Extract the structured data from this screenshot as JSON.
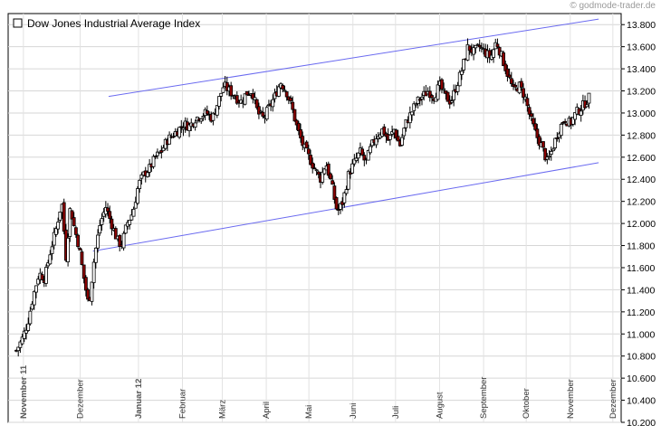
{
  "copyright": "© godmode-trader.de",
  "chart_data": {
    "type": "candlestick",
    "title": "Dow Jones Industrial Average Index",
    "legend_position": "top-left",
    "grid": true,
    "ylim": [
      10200,
      13900
    ],
    "yticks": [
      "13.800",
      "13.600",
      "13.400",
      "13.200",
      "13.000",
      "12.800",
      "12.600",
      "12.400",
      "12.200",
      "12.000",
      "11.800",
      "11.600",
      "11.400",
      "11.200",
      "11.000",
      "10.800",
      "10.600",
      "10.400",
      "10.200"
    ],
    "yticks_values": [
      13800,
      13600,
      13400,
      13200,
      13000,
      12800,
      12600,
      12400,
      12200,
      12000,
      11800,
      11600,
      11400,
      11200,
      11000,
      10800,
      10600,
      10400,
      10200
    ],
    "x_start_day": 0,
    "x_end_day": 408,
    "month_labels": [
      {
        "label": "November 11",
        "day": 5,
        "bold": true
      },
      {
        "label": "Dezember",
        "day": 45,
        "bold": false
      },
      {
        "label": "Januar 12",
        "day": 86,
        "bold": true
      },
      {
        "label": "Februar",
        "day": 117,
        "bold": false
      },
      {
        "label": "März",
        "day": 145,
        "bold": false
      },
      {
        "label": "April",
        "day": 176,
        "bold": false
      },
      {
        "label": "Mai",
        "day": 206,
        "bold": false
      },
      {
        "label": "Juni",
        "day": 237,
        "bold": false
      },
      {
        "label": "Juli",
        "day": 267,
        "bold": false
      },
      {
        "label": "August",
        "day": 298,
        "bold": false
      },
      {
        "label": "September",
        "day": 329,
        "bold": false
      },
      {
        "label": "Oktober",
        "day": 359,
        "bold": false
      },
      {
        "label": "November",
        "day": 390,
        "bold": false
      },
      {
        "label": "Dezember",
        "day": 420,
        "bold": false
      }
    ],
    "close_path": [
      [
        0,
        10850
      ],
      [
        4,
        10950
      ],
      [
        8,
        11100
      ],
      [
        12,
        11350
      ],
      [
        16,
        11550
      ],
      [
        20,
        11500
      ],
      [
        24,
        11750
      ],
      [
        28,
        11950
      ],
      [
        32,
        12200
      ],
      [
        35,
        11700
      ],
      [
        38,
        12150
      ],
      [
        41,
        11950
      ],
      [
        44,
        11800
      ],
      [
        47,
        11550
      ],
      [
        51,
        11250
      ],
      [
        55,
        11700
      ],
      [
        59,
        12000
      ],
      [
        63,
        12150
      ],
      [
        67,
        12000
      ],
      [
        71,
        11850
      ],
      [
        74,
        11800
      ],
      [
        78,
        12000
      ],
      [
        82,
        12100
      ],
      [
        86,
        12350
      ],
      [
        90,
        12450
      ],
      [
        94,
        12500
      ],
      [
        98,
        12600
      ],
      [
        102,
        12650
      ],
      [
        106,
        12750
      ],
      [
        110,
        12800
      ],
      [
        114,
        12850
      ],
      [
        118,
        12900
      ],
      [
        122,
        12880
      ],
      [
        126,
        12950
      ],
      [
        130,
        12980
      ],
      [
        134,
        13000
      ],
      [
        138,
        12950
      ],
      [
        142,
        13100
      ],
      [
        146,
        13250
      ],
      [
        150,
        13200
      ],
      [
        154,
        13150
      ],
      [
        158,
        13100
      ],
      [
        162,
        13180
      ],
      [
        166,
        13200
      ],
      [
        170,
        13000
      ],
      [
        174,
        12950
      ],
      [
        178,
        13050
      ],
      [
        182,
        13150
      ],
      [
        186,
        13280
      ],
      [
        190,
        13200
      ],
      [
        194,
        13050
      ],
      [
        198,
        12850
      ],
      [
        202,
        12700
      ],
      [
        206,
        12600
      ],
      [
        210,
        12500
      ],
      [
        214,
        12400
      ],
      [
        218,
        12550
      ],
      [
        222,
        12350
      ],
      [
        226,
        12100
      ],
      [
        230,
        12200
      ],
      [
        234,
        12450
      ],
      [
        238,
        12550
      ],
      [
        242,
        12650
      ],
      [
        246,
        12550
      ],
      [
        250,
        12700
      ],
      [
        254,
        12800
      ],
      [
        258,
        12850
      ],
      [
        262,
        12750
      ],
      [
        266,
        12850
      ],
      [
        270,
        12700
      ],
      [
        274,
        12900
      ],
      [
        278,
        13000
      ],
      [
        282,
        13100
      ],
      [
        286,
        13150
      ],
      [
        290,
        13200
      ],
      [
        294,
        13150
      ],
      [
        298,
        13250
      ],
      [
        302,
        13150
      ],
      [
        306,
        13100
      ],
      [
        310,
        13250
      ],
      [
        314,
        13400
      ],
      [
        318,
        13600
      ],
      [
        322,
        13550
      ],
      [
        326,
        13600
      ],
      [
        330,
        13550
      ],
      [
        334,
        13500
      ],
      [
        338,
        13650
      ],
      [
        342,
        13500
      ],
      [
        346,
        13350
      ],
      [
        350,
        13200
      ],
      [
        354,
        13250
      ],
      [
        358,
        13150
      ],
      [
        362,
        12950
      ],
      [
        366,
        12800
      ],
      [
        370,
        12700
      ],
      [
        374,
        12550
      ],
      [
        378,
        12700
      ],
      [
        382,
        12850
      ],
      [
        386,
        12950
      ],
      [
        390,
        12900
      ],
      [
        394,
        13000
      ],
      [
        398,
        13050
      ],
      [
        404,
        13150
      ]
    ],
    "trendlines": [
      {
        "points": [
          [
            65,
            13150
          ],
          [
            410,
            13850
          ]
        ]
      },
      {
        "points": [
          [
            54,
            11750
          ],
          [
            410,
            12550
          ]
        ]
      }
    ]
  }
}
